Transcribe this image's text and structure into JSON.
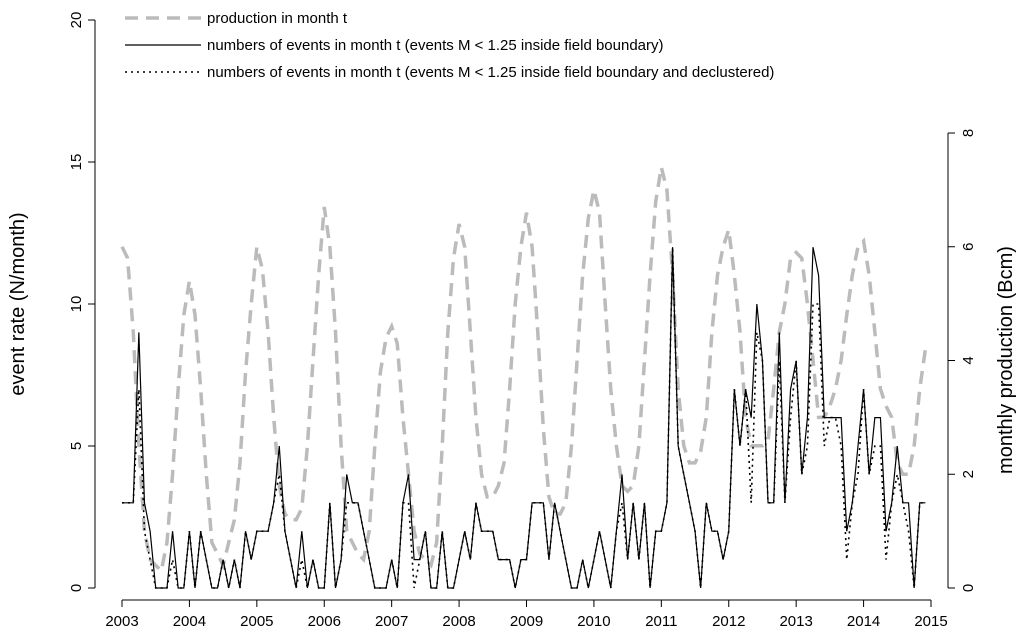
{
  "chart_data": {
    "type": "line",
    "legend": "top-left",
    "ylabel": "event rate (N/month)",
    "y2label": "monthly production (Bcm)",
    "xlim": [
      2003,
      2015
    ],
    "xticks": [
      2003,
      2004,
      2005,
      2006,
      2007,
      2008,
      2009,
      2010,
      2011,
      2012,
      2013,
      2014,
      2015
    ],
    "ylim": [
      0,
      20
    ],
    "yticks": [
      0,
      5,
      10,
      15,
      20
    ],
    "y2lim": [
      0,
      8
    ],
    "y2ticks": [
      0,
      2,
      4,
      6,
      8
    ],
    "x": [
      2003,
      2003.083,
      2003.167,
      2003.25,
      2003.333,
      2003.417,
      2003.5,
      2003.583,
      2003.667,
      2003.75,
      2003.833,
      2003.917,
      2004,
      2004.083,
      2004.167,
      2004.25,
      2004.333,
      2004.417,
      2004.5,
      2004.583,
      2004.667,
      2004.75,
      2004.833,
      2004.917,
      2005,
      2005.083,
      2005.167,
      2005.25,
      2005.333,
      2005.417,
      2005.5,
      2005.583,
      2005.667,
      2005.75,
      2005.833,
      2005.917,
      2006,
      2006.083,
      2006.167,
      2006.25,
      2006.333,
      2006.417,
      2006.5,
      2006.583,
      2006.667,
      2006.75,
      2006.833,
      2006.917,
      2007,
      2007.083,
      2007.167,
      2007.25,
      2007.333,
      2007.417,
      2007.5,
      2007.583,
      2007.667,
      2007.75,
      2007.833,
      2007.917,
      2008,
      2008.083,
      2008.167,
      2008.25,
      2008.333,
      2008.417,
      2008.5,
      2008.583,
      2008.667,
      2008.75,
      2008.833,
      2008.917,
      2009,
      2009.083,
      2009.167,
      2009.25,
      2009.333,
      2009.417,
      2009.5,
      2009.583,
      2009.667,
      2009.75,
      2009.833,
      2009.917,
      2010,
      2010.083,
      2010.167,
      2010.25,
      2010.333,
      2010.417,
      2010.5,
      2010.583,
      2010.667,
      2010.75,
      2010.833,
      2010.917,
      2011,
      2011.083,
      2011.167,
      2011.25,
      2011.333,
      2011.417,
      2011.5,
      2011.583,
      2011.667,
      2011.75,
      2011.833,
      2011.917,
      2012,
      2012.083,
      2012.167,
      2012.25,
      2012.333,
      2012.417,
      2012.5,
      2012.583,
      2012.667,
      2012.75,
      2012.833,
      2012.917,
      2013,
      2013.083,
      2013.167,
      2013.25,
      2013.333,
      2013.417,
      2013.5,
      2013.583,
      2013.667,
      2013.75,
      2013.833,
      2013.917,
      2014,
      2014.083,
      2014.167,
      2014.25,
      2014.333,
      2014.417,
      2014.5,
      2014.583,
      2014.667,
      2014.75,
      2014.833,
      2014.917
    ],
    "series": [
      {
        "name": "production in month t",
        "color": "#bbbbbb",
        "linestyle": "dashed",
        "axis": "y2",
        "values": [
          6.0,
          5.8,
          4.5,
          2.5,
          1.0,
          0.5,
          0.4,
          0.3,
          0.8,
          2.0,
          3.5,
          4.8,
          5.4,
          4.8,
          3.5,
          2.0,
          0.8,
          0.6,
          0.4,
          0.8,
          1.2,
          2.2,
          3.8,
          5.0,
          6.0,
          5.6,
          4.5,
          3.0,
          1.8,
          1.3,
          1.2,
          1.2,
          1.4,
          2.5,
          4.0,
          5.5,
          6.7,
          6.0,
          4.5,
          2.5,
          1.0,
          0.8,
          0.6,
          0.5,
          1.0,
          2.5,
          3.8,
          4.4,
          4.6,
          4.3,
          3.0,
          2.0,
          1.0,
          0.6,
          0.5,
          0.4,
          0.8,
          2.5,
          4.5,
          5.8,
          6.4,
          6.0,
          4.5,
          3.0,
          2.0,
          1.6,
          1.6,
          1.8,
          2.2,
          3.5,
          5.0,
          6.0,
          6.6,
          6.0,
          4.5,
          2.8,
          1.6,
          1.3,
          1.3,
          1.5,
          2.5,
          4.0,
          5.5,
          6.5,
          7.0,
          6.6,
          5.0,
          3.5,
          2.5,
          1.8,
          1.7,
          1.8,
          2.5,
          4.0,
          5.5,
          6.8,
          7.4,
          7.0,
          5.5,
          3.5,
          2.5,
          2.2,
          2.2,
          2.4,
          3.0,
          4.5,
          5.5,
          6.0,
          6.3,
          5.5,
          4.5,
          3.0,
          2.5,
          2.5,
          2.5,
          2.6,
          3.5,
          4.5,
          5.0,
          5.8,
          5.9,
          5.8,
          5.0,
          4.0,
          3.0,
          3.0,
          3.2,
          3.5,
          4.0,
          4.8,
          5.5,
          6.0,
          6.1,
          5.5,
          4.5,
          3.5,
          3.2,
          3.0,
          2.2,
          2.0,
          2.0,
          2.5,
          3.5,
          4.2
        ]
      },
      {
        "name": "numbers of events in month t (events M < 1.25 inside field boundary)",
        "color": "#000000",
        "linestyle": "solid",
        "values": [
          3,
          3,
          3,
          9,
          3,
          2,
          0,
          0,
          0,
          2,
          0,
          0,
          2,
          0,
          2,
          1,
          0,
          0,
          1,
          0,
          1,
          0,
          2,
          1,
          2,
          2,
          2,
          3,
          5,
          2,
          1,
          0,
          2,
          0,
          1,
          0,
          0,
          3,
          0,
          1,
          4,
          3,
          3,
          2,
          1,
          0,
          0,
          0,
          1,
          0,
          3,
          4,
          1,
          1,
          2,
          0,
          0,
          2,
          0,
          0,
          1,
          2,
          1,
          3,
          2,
          2,
          2,
          1,
          1,
          1,
          0,
          1,
          1,
          3,
          3,
          3,
          1,
          3,
          2,
          1,
          0,
          0,
          1,
          0,
          1,
          2,
          1,
          0,
          2,
          4,
          1,
          3,
          1,
          3,
          0,
          2,
          2,
          3,
          12,
          5,
          4,
          3,
          2,
          0,
          3,
          2,
          2,
          1,
          2,
          7,
          5,
          7,
          6,
          10,
          8,
          3,
          3,
          9,
          3,
          7,
          8,
          4,
          6,
          12,
          11,
          6,
          6,
          6,
          6,
          2,
          3,
          5,
          7,
          4,
          6,
          6,
          2,
          3,
          5,
          3,
          3,
          0,
          3,
          3
        ]
      },
      {
        "name": "numbers of events in month t (events M < 1.25 inside field boundary and declustered)",
        "color": "#000000",
        "linestyle": "dotted",
        "values": [
          3,
          3,
          3,
          7,
          2,
          1,
          0,
          0,
          0,
          1,
          0,
          0,
          2,
          0,
          2,
          1,
          0,
          0,
          1,
          0,
          1,
          0,
          2,
          1,
          2,
          2,
          2,
          3,
          4,
          2,
          1,
          0,
          1,
          0,
          1,
          0,
          0,
          3,
          0,
          1,
          3,
          3,
          3,
          2,
          1,
          0,
          0,
          0,
          1,
          0,
          3,
          3,
          0,
          1,
          2,
          0,
          0,
          2,
          0,
          0,
          1,
          2,
          1,
          3,
          2,
          2,
          2,
          1,
          1,
          1,
          0,
          1,
          1,
          3,
          3,
          3,
          1,
          3,
          2,
          1,
          0,
          0,
          1,
          0,
          1,
          2,
          1,
          0,
          2,
          3,
          1,
          3,
          1,
          3,
          0,
          2,
          2,
          3,
          12,
          5,
          4,
          3,
          2,
          0,
          3,
          2,
          2,
          1,
          2,
          7,
          5,
          7,
          3,
          9,
          8,
          3,
          3,
          8,
          3,
          6,
          8,
          4,
          5,
          10,
          10,
          5,
          6,
          6,
          5,
          1,
          3,
          4,
          7,
          4,
          5,
          5,
          1,
          3,
          4,
          3,
          2,
          0,
          3,
          3
        ]
      }
    ]
  }
}
